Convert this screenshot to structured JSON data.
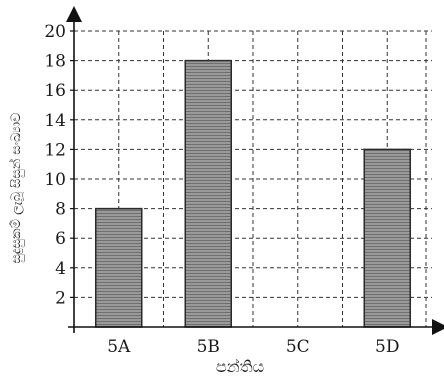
{
  "chart_data": {
    "type": "bar",
    "categories": [
      "5A",
      "5B",
      "5C",
      "5D"
    ],
    "values": [
      8,
      18,
      0,
      12
    ],
    "xlabel": "පන්තිය",
    "ylabel": "සුදුසුකම් ලැබූ සිසුන් සංඛ්‍යාව",
    "ylim": [
      0,
      20
    ],
    "yticks": [
      2,
      4,
      6,
      8,
      10,
      12,
      14,
      16,
      18,
      20
    ],
    "grid": true,
    "colors": {
      "bar_fill": "#8a8a8a",
      "bar_stroke": "#2a2a2a",
      "grid": "#333333",
      "axis": "#111111",
      "text": "#1a1a1a"
    }
  }
}
